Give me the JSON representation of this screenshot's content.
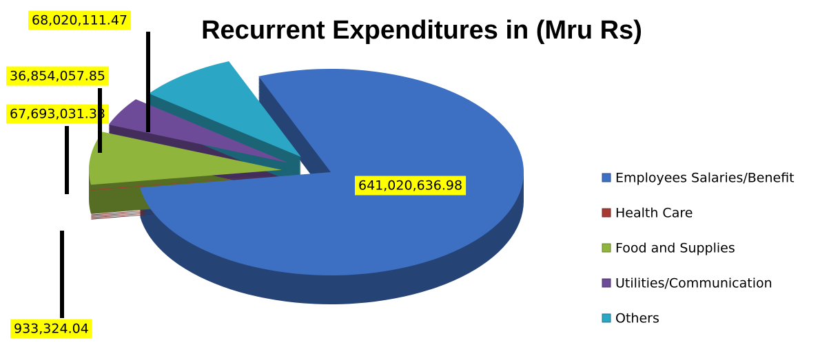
{
  "chart_data": {
    "type": "pie",
    "title": "Recurrent Expenditures in (Mru Rs)",
    "categories": [
      "Employees Salaries/Benefit",
      "Health Care",
      "Food and Supplies",
      "Utilities/Communication",
      "Others"
    ],
    "values": [
      641020636.98,
      933324.04,
      67693031.33,
      36854057.85,
      68020111.47
    ],
    "value_labels": [
      "641,020,636.98",
      "933,324.04",
      "67,693,031.33",
      "36,854,057.85",
      "68,020,111.47"
    ],
    "colors": [
      "#3d70c2",
      "#a83a35",
      "#8fb53c",
      "#6e4b98",
      "#2ba6c4"
    ],
    "legend": "right"
  }
}
